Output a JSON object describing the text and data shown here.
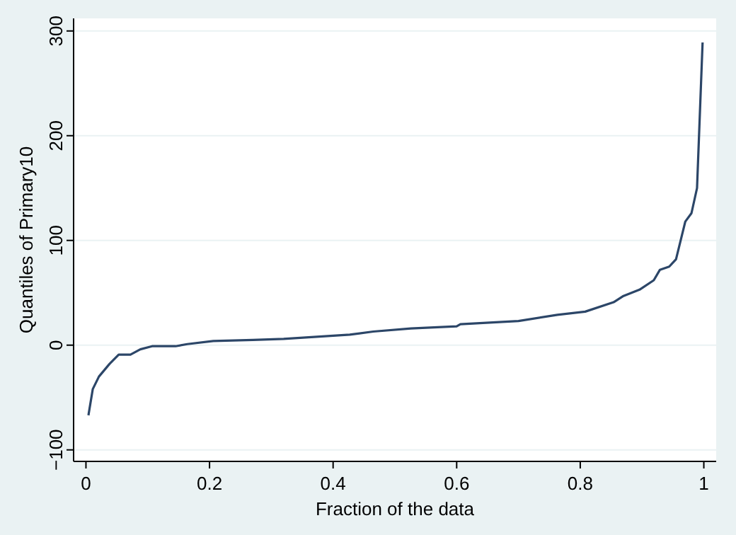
{
  "chart_data": {
    "type": "line",
    "xlabel": "Fraction of the data",
    "ylabel": "Quantiles of Primary10",
    "x": [
      0.004,
      0.011,
      0.021,
      0.038,
      0.053,
      0.072,
      0.088,
      0.107,
      0.145,
      0.164,
      0.206,
      0.27,
      0.32,
      0.427,
      0.465,
      0.526,
      0.6,
      0.606,
      0.7,
      0.763,
      0.808,
      0.854,
      0.87,
      0.896,
      0.919,
      0.929,
      0.944,
      0.955,
      0.97,
      0.98,
      0.989,
      0.998
    ],
    "series": [
      {
        "color": "#2c4668",
        "values": [
          -67,
          -42,
          -30,
          -18,
          -9,
          -9,
          -4,
          -1,
          -1,
          1,
          4,
          5,
          6,
          10,
          13,
          16,
          18,
          20,
          23,
          29,
          32,
          41,
          47,
          53,
          62,
          72,
          75,
          82,
          118,
          126,
          150,
          289
        ]
      }
    ],
    "xlim": [
      -0.02,
      1.02
    ],
    "ylim": [
      -111,
      312
    ],
    "xticks": [
      0,
      0.2,
      0.4,
      0.6,
      0.8,
      1
    ],
    "yticks": [
      -100,
      0,
      100,
      200,
      300
    ],
    "grid": "y",
    "marker": "none",
    "line_style": "solid"
  }
}
